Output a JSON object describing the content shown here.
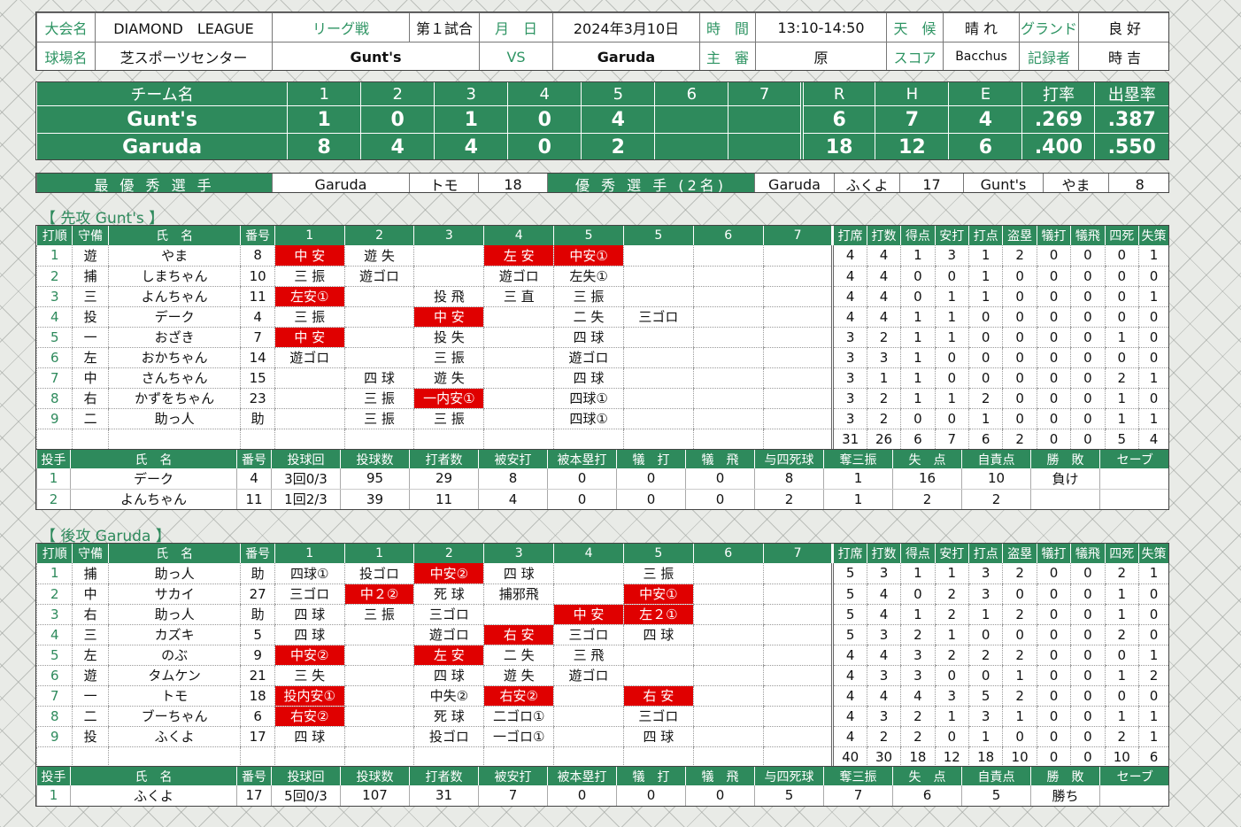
{
  "header": {
    "tournament_label": "大会名",
    "tournament": "DIAMOND　LEAGUE",
    "game_type": "リーグ戦",
    "game_no": "第１試合",
    "date_label": "月　日",
    "date": "2024年3月10日",
    "time_label": "時　間",
    "time": "13:10-14:50",
    "weather_label": "天　候",
    "weather": "晴 れ",
    "ground_label": "グランド",
    "ground": "良 好",
    "venue_label": "球場名",
    "venue": "芝スポーツセンター",
    "home_team": "Gunt's",
    "vs": "VS",
    "away_team": "Garuda",
    "umpire_label": "主　審",
    "umpire": "原",
    "scorer_label": "スコア",
    "scorer": "Bacchus",
    "recorder_label": "記録者",
    "recorder": "時 吉"
  },
  "scoreboard": {
    "headers": [
      "チーム名",
      "1",
      "2",
      "3",
      "4",
      "5",
      "6",
      "7",
      "R",
      "H",
      "E",
      "打率",
      "出塁率"
    ],
    "rows": [
      [
        "Gunt's",
        "1",
        "0",
        "1",
        "0",
        "4",
        "",
        "",
        "6",
        "7",
        "4",
        ".269",
        ".387"
      ],
      [
        "Garuda",
        "8",
        "4",
        "4",
        "0",
        "2",
        "",
        "",
        "18",
        "12",
        "6",
        ".400",
        ".550"
      ]
    ]
  },
  "mvp": {
    "mvp_label": "最 優 秀 選 手",
    "mvp_team": "Garuda",
    "mvp_name": "トモ",
    "mvp_no": "18",
    "excellent_label": "優 秀 選 手 (2名)",
    "ex_team": "Garuda",
    "ex_name": "ふくよ",
    "ex_no": "17",
    "ex2_team": "Gunt's",
    "ex2_name": "やま",
    "ex2_no": "8"
  },
  "batting_headers": [
    "打順",
    "守備",
    "氏　名",
    "番号",
    "打席",
    "打数",
    "得点",
    "安打",
    "打点",
    "盗塁",
    "犠打",
    "犠飛",
    "四死",
    "失策"
  ],
  "pitching_headers": [
    "投手",
    "氏　名",
    "番号",
    "投球回",
    "投球数",
    "打者数",
    "被安打",
    "被本塁打",
    "犠　打",
    "犠　飛",
    "与四死球",
    "奪三振",
    "失　点",
    "自責点",
    "勝　敗",
    "セーブ"
  ],
  "first": {
    "title": "【 先攻 Gunt's 】",
    "innings": [
      "1",
      "2",
      "3",
      "4",
      "5",
      "5",
      "6",
      "7"
    ],
    "rows": [
      {
        "o": "1",
        "pos": "遊",
        "name": "やま",
        "no": "8",
        "ab": [
          [
            "中 安",
            1
          ],
          [
            "遊 失",
            0
          ],
          [
            "",
            0
          ],
          [
            "左 安",
            1
          ],
          [
            "中安①",
            1
          ],
          [
            "",
            0
          ],
          [
            "",
            0
          ],
          [
            "",
            0
          ]
        ],
        "st": [
          "4",
          "4",
          "1",
          "3",
          "1",
          "2",
          "0",
          "0",
          "0",
          "1"
        ]
      },
      {
        "o": "2",
        "pos": "捕",
        "name": "しまちゃん",
        "no": "10",
        "ab": [
          [
            "三 振",
            0
          ],
          [
            "遊ゴロ",
            0
          ],
          [
            "",
            0
          ],
          [
            "遊ゴロ",
            0
          ],
          [
            "左失①",
            0
          ],
          [
            "",
            0
          ],
          [
            "",
            0
          ],
          [
            "",
            0
          ]
        ],
        "st": [
          "4",
          "4",
          "0",
          "0",
          "1",
          "0",
          "0",
          "0",
          "0",
          "0"
        ]
      },
      {
        "o": "3",
        "pos": "三",
        "name": "よんちゃん",
        "no": "11",
        "ab": [
          [
            "左安①",
            1
          ],
          [
            "",
            0
          ],
          [
            "投 飛",
            0
          ],
          [
            "三 直",
            0
          ],
          [
            "三 振",
            0
          ],
          [
            "",
            0
          ],
          [
            "",
            0
          ],
          [
            "",
            0
          ]
        ],
        "st": [
          "4",
          "4",
          "0",
          "1",
          "1",
          "0",
          "0",
          "0",
          "0",
          "1"
        ]
      },
      {
        "o": "4",
        "pos": "投",
        "name": "デーク",
        "no": "4",
        "ab": [
          [
            "三 振",
            0
          ],
          [
            "",
            0
          ],
          [
            "中 安",
            1
          ],
          [
            "",
            0
          ],
          [
            "二 失",
            0
          ],
          [
            "三ゴロ",
            0
          ],
          [
            "",
            0
          ],
          [
            "",
            0
          ]
        ],
        "st": [
          "4",
          "4",
          "1",
          "1",
          "0",
          "0",
          "0",
          "0",
          "0",
          "0"
        ]
      },
      {
        "o": "5",
        "pos": "一",
        "name": "おざき",
        "no": "7",
        "ab": [
          [
            "中 安",
            1
          ],
          [
            "",
            0
          ],
          [
            "投 失",
            0
          ],
          [
            "",
            0
          ],
          [
            "四 球",
            0
          ],
          [
            "",
            0
          ],
          [
            "",
            0
          ],
          [
            "",
            0
          ]
        ],
        "st": [
          "3",
          "2",
          "1",
          "1",
          "0",
          "0",
          "0",
          "0",
          "1",
          "0"
        ]
      },
      {
        "o": "6",
        "pos": "左",
        "name": "おかちゃん",
        "no": "14",
        "ab": [
          [
            "遊ゴロ",
            0
          ],
          [
            "",
            0
          ],
          [
            "三 振",
            0
          ],
          [
            "",
            0
          ],
          [
            "遊ゴロ",
            0
          ],
          [
            "",
            0
          ],
          [
            "",
            0
          ],
          [
            "",
            0
          ]
        ],
        "st": [
          "3",
          "3",
          "1",
          "0",
          "0",
          "0",
          "0",
          "0",
          "0",
          "0"
        ]
      },
      {
        "o": "7",
        "pos": "中",
        "name": "さんちゃん",
        "no": "15",
        "ab": [
          [
            "",
            0
          ],
          [
            "四 球",
            0
          ],
          [
            "遊 失",
            0
          ],
          [
            "",
            0
          ],
          [
            "四 球",
            0
          ],
          [
            "",
            0
          ],
          [
            "",
            0
          ],
          [
            "",
            0
          ]
        ],
        "st": [
          "3",
          "1",
          "1",
          "0",
          "0",
          "0",
          "0",
          "0",
          "2",
          "1"
        ]
      },
      {
        "o": "8",
        "pos": "右",
        "name": "かずをちゃん",
        "no": "23",
        "ab": [
          [
            "",
            0
          ],
          [
            "三 振",
            0
          ],
          [
            "一内安①",
            1
          ],
          [
            "",
            0
          ],
          [
            "四球①",
            0
          ],
          [
            "",
            0
          ],
          [
            "",
            0
          ],
          [
            "",
            0
          ]
        ],
        "st": [
          "3",
          "2",
          "1",
          "1",
          "2",
          "0",
          "0",
          "0",
          "1",
          "0"
        ]
      },
      {
        "o": "9",
        "pos": "二",
        "name": "助っ人",
        "no": "助",
        "ab": [
          [
            "",
            0
          ],
          [
            "三 振",
            0
          ],
          [
            "三 振",
            0
          ],
          [
            "",
            0
          ],
          [
            "四球①",
            0
          ],
          [
            "",
            0
          ],
          [
            "",
            0
          ],
          [
            "",
            0
          ]
        ],
        "st": [
          "3",
          "2",
          "0",
          "0",
          "1",
          "0",
          "0",
          "0",
          "1",
          "1"
        ]
      }
    ],
    "totals": [
      "31",
      "26",
      "6",
      "7",
      "6",
      "2",
      "0",
      "0",
      "5",
      "4"
    ],
    "pitchers": [
      [
        "1",
        "デーク",
        "4",
        "3回0/3",
        "95",
        "29",
        "8",
        "0",
        "0",
        "0",
        "8",
        "1",
        "16",
        "10",
        "負け",
        ""
      ],
      [
        "2",
        "よんちゃん",
        "11",
        "1回2/3",
        "39",
        "11",
        "4",
        "0",
        "0",
        "0",
        "2",
        "1",
        "2",
        "2",
        "",
        ""
      ]
    ]
  },
  "second": {
    "title": "【 後攻 Garuda 】",
    "innings": [
      "1",
      "1",
      "2",
      "3",
      "4",
      "5",
      "6",
      "7"
    ],
    "rows": [
      {
        "o": "1",
        "pos": "捕",
        "name": "助っ人",
        "no": "助",
        "ab": [
          [
            "四球①",
            0
          ],
          [
            "投ゴロ",
            0
          ],
          [
            "中安②",
            1
          ],
          [
            "四 球",
            0
          ],
          [
            "",
            0
          ],
          [
            "三 振",
            0
          ],
          [
            "",
            0
          ],
          [
            "",
            0
          ]
        ],
        "st": [
          "5",
          "3",
          "1",
          "1",
          "3",
          "2",
          "0",
          "0",
          "2",
          "1"
        ]
      },
      {
        "o": "2",
        "pos": "中",
        "name": "サカイ",
        "no": "27",
        "ab": [
          [
            "三ゴロ",
            0
          ],
          [
            "中２②",
            1
          ],
          [
            "死 球",
            0
          ],
          [
            "捕邪飛",
            0
          ],
          [
            "",
            0
          ],
          [
            "中安①",
            1
          ],
          [
            "",
            0
          ],
          [
            "",
            0
          ]
        ],
        "st": [
          "5",
          "4",
          "0",
          "2",
          "3",
          "0",
          "0",
          "0",
          "1",
          "0"
        ]
      },
      {
        "o": "3",
        "pos": "右",
        "name": "助っ人",
        "no": "助",
        "ab": [
          [
            "四 球",
            0
          ],
          [
            "三 振",
            0
          ],
          [
            "三ゴロ",
            0
          ],
          [
            "",
            0
          ],
          [
            "中 安",
            1
          ],
          [
            "左２①",
            1
          ],
          [
            "",
            0
          ],
          [
            "",
            0
          ]
        ],
        "st": [
          "5",
          "4",
          "1",
          "2",
          "1",
          "2",
          "0",
          "0",
          "1",
          "0"
        ]
      },
      {
        "o": "4",
        "pos": "三",
        "name": "カズキ",
        "no": "5",
        "ab": [
          [
            "四 球",
            0
          ],
          [
            "",
            0
          ],
          [
            "遊ゴロ",
            0
          ],
          [
            "右 安",
            1
          ],
          [
            "三ゴロ",
            0
          ],
          [
            "四 球",
            0
          ],
          [
            "",
            0
          ],
          [
            "",
            0
          ]
        ],
        "st": [
          "5",
          "3",
          "2",
          "1",
          "0",
          "0",
          "0",
          "0",
          "2",
          "0"
        ]
      },
      {
        "o": "5",
        "pos": "左",
        "name": "のぶ",
        "no": "9",
        "ab": [
          [
            "中安②",
            1
          ],
          [
            "",
            0
          ],
          [
            "左 安",
            1
          ],
          [
            "二 失",
            0
          ],
          [
            "三 飛",
            0
          ],
          [
            "",
            0
          ],
          [
            "",
            0
          ],
          [
            "",
            0
          ]
        ],
        "st": [
          "4",
          "4",
          "3",
          "2",
          "2",
          "2",
          "0",
          "0",
          "0",
          "1"
        ]
      },
      {
        "o": "6",
        "pos": "遊",
        "name": "タムケン",
        "no": "21",
        "ab": [
          [
            "三 失",
            0
          ],
          [
            "",
            0
          ],
          [
            "四 球",
            0
          ],
          [
            "遊 失",
            0
          ],
          [
            "遊ゴロ",
            0
          ],
          [
            "",
            0
          ],
          [
            "",
            0
          ],
          [
            "",
            0
          ]
        ],
        "st": [
          "4",
          "3",
          "3",
          "0",
          "0",
          "1",
          "0",
          "0",
          "1",
          "2"
        ]
      },
      {
        "o": "7",
        "pos": "一",
        "name": "トモ",
        "no": "18",
        "ab": [
          [
            "投内安①",
            1
          ],
          [
            "",
            0
          ],
          [
            "中失②",
            0
          ],
          [
            "右安②",
            1
          ],
          [
            "",
            0
          ],
          [
            "右 安",
            1
          ],
          [
            "",
            0
          ],
          [
            "",
            0
          ]
        ],
        "st": [
          "4",
          "4",
          "4",
          "3",
          "5",
          "2",
          "0",
          "0",
          "0",
          "0"
        ]
      },
      {
        "o": "8",
        "pos": "二",
        "name": "ブーちゃん",
        "no": "6",
        "ab": [
          [
            "右安②",
            1
          ],
          [
            "",
            0
          ],
          [
            "死 球",
            0
          ],
          [
            "二ゴロ①",
            0
          ],
          [
            "",
            0
          ],
          [
            "三ゴロ",
            0
          ],
          [
            "",
            0
          ],
          [
            "",
            0
          ]
        ],
        "st": [
          "4",
          "3",
          "2",
          "1",
          "3",
          "1",
          "0",
          "0",
          "1",
          "1"
        ]
      },
      {
        "o": "9",
        "pos": "投",
        "name": "ふくよ",
        "no": "17",
        "ab": [
          [
            "四 球",
            0
          ],
          [
            "",
            0
          ],
          [
            "投ゴロ",
            0
          ],
          [
            "一ゴロ①",
            0
          ],
          [
            "",
            0
          ],
          [
            "四 球",
            0
          ],
          [
            "",
            0
          ],
          [
            "",
            0
          ]
        ],
        "st": [
          "4",
          "2",
          "2",
          "0",
          "1",
          "0",
          "0",
          "0",
          "2",
          "1"
        ]
      }
    ],
    "totals": [
      "40",
      "30",
      "18",
      "12",
      "18",
      "10",
      "0",
      "0",
      "10",
      "6"
    ],
    "pitchers": [
      [
        "1",
        "ふくよ",
        "17",
        "5回0/3",
        "107",
        "31",
        "7",
        "0",
        "0",
        "0",
        "5",
        "7",
        "6",
        "5",
        "勝ち",
        ""
      ]
    ]
  }
}
